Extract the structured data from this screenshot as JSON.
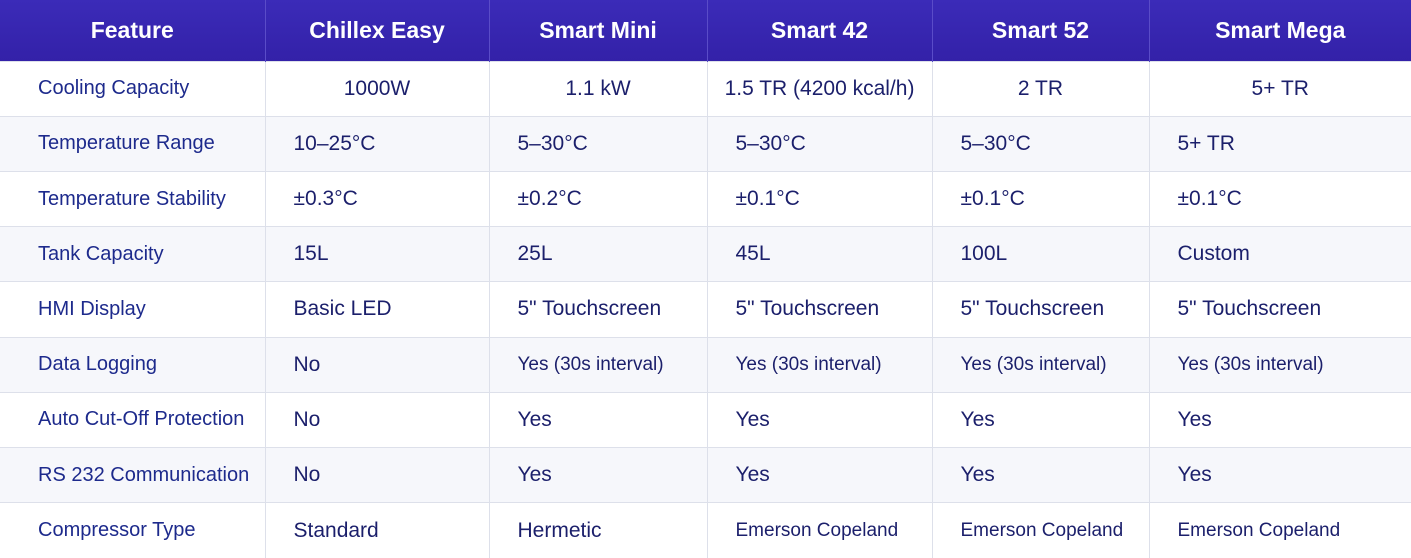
{
  "header": [
    "Feature",
    "Chillex Easy",
    "Smart Mini",
    "Smart 42",
    "Smart 52",
    "Smart Mega"
  ],
  "rows": [
    {
      "feature": "Cooling Capacity",
      "values": [
        "1000W",
        "1.1 kW",
        "1.5 TR (4200 kcal/h)",
        "2 TR",
        "5+ TR"
      ]
    },
    {
      "feature": "Temperature Range",
      "values": [
        "10–25°C",
        "5–30°C",
        "5–30°C",
        "5–30°C",
        "5+ TR"
      ]
    },
    {
      "feature": "Temperature Stability",
      "values": [
        "±0.3°C",
        "±0.2°C",
        "±0.1°C",
        "±0.1°C",
        "±0.1°C"
      ]
    },
    {
      "feature": "Tank Capacity",
      "values": [
        "15L",
        "25L",
        "45L",
        "100L",
        "Custom"
      ]
    },
    {
      "feature": "HMI Display",
      "values": [
        "Basic LED",
        "5\" Touchscreen",
        "5\" Touchscreen",
        "5\" Touchscreen",
        "5\" Touchscreen"
      ]
    },
    {
      "feature": "Data Logging",
      "values": [
        "No",
        "Yes (30s interval)",
        "Yes (30s interval)",
        "Yes (30s interval)",
        "Yes (30s interval)"
      ]
    },
    {
      "feature": "Auto Cut-Off Protection",
      "values": [
        "No",
        "Yes",
        "Yes",
        "Yes",
        "Yes"
      ]
    },
    {
      "feature": "RS 232 Communication",
      "values": [
        "No",
        "Yes",
        "Yes",
        "Yes",
        "Yes"
      ]
    },
    {
      "feature": "Compressor Type",
      "values": [
        "Standard",
        "Hermetic",
        "Emerson Copeland",
        "Emerson Copeland",
        "Emerson Copeland"
      ]
    }
  ]
}
